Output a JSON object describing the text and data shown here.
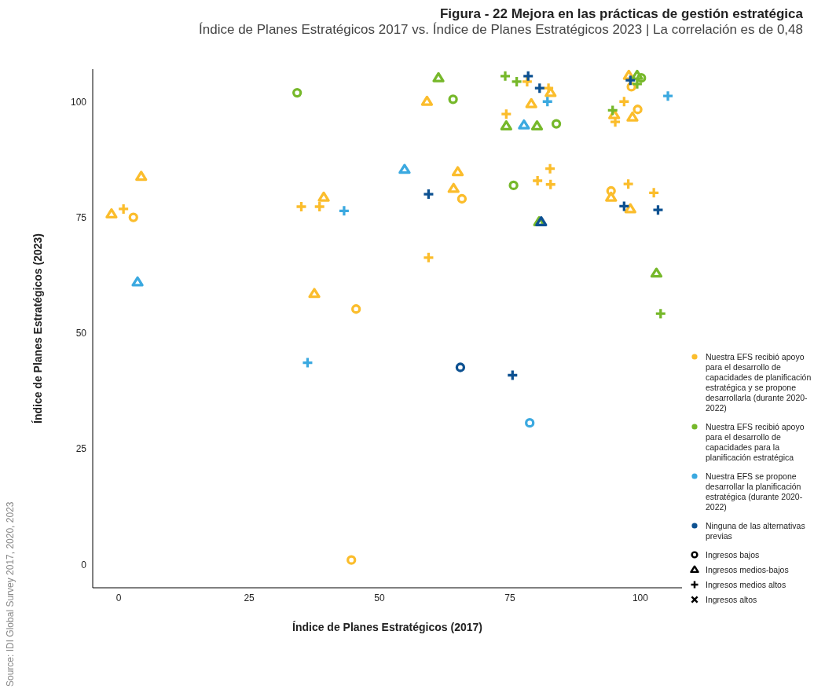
{
  "chart_data": {
    "type": "scatter",
    "title": "Figura - 22 Mejora en las prácticas de gestión estratégica",
    "subtitle": "Índice de Planes Estratégicos 2017 vs. Índice de Planes Estratégicos 2023 | La correlación es de 0,48",
    "xlabel": "Índice de Planes Estratégicos (2017)",
    "ylabel": "Índice de Planes Estratégicos (2023)",
    "annotations": [
      "Source: IDI Global Survey 2017, 2020, 2023"
    ],
    "xlim": [
      -5,
      108
    ],
    "ylim": [
      -5,
      107
    ],
    "xticks": [
      0,
      25,
      50,
      75,
      100
    ],
    "yticks": [
      0,
      25,
      50,
      75,
      100
    ],
    "grid": false,
    "legend": "right",
    "series": [
      {
        "color": "#fbbd2c",
        "marker": "circle",
        "x": [
          2.8,
          45.5,
          44.6,
          65.8,
          98.3,
          99.5,
          94.4
        ],
        "values": [
          75.0,
          55.2,
          1.0,
          79.0,
          103.2,
          98.3,
          80.7
        ]
      },
      {
        "color": "#fbbd2c",
        "marker": "triangle",
        "x": [
          -1.4,
          4.3,
          39.3,
          37.5,
          59.1,
          65.0,
          64.2,
          79.1,
          82.8,
          97.8,
          95.0,
          98.5,
          94.4,
          98.1
        ],
        "values": [
          75.7,
          83.8,
          79.3,
          58.5,
          100.0,
          84.8,
          81.2,
          99.5,
          101.9,
          105.6,
          97.1,
          96.6,
          79.3,
          76.8
        ]
      },
      {
        "color": "#fbbd2c",
        "marker": "plus",
        "x": [
          0.9,
          35.0,
          38.5,
          59.4,
          74.3,
          78.3,
          82.4,
          96.9,
          95.2,
          82.7,
          80.3,
          82.8,
          97.7,
          102.6
        ],
        "values": [
          76.8,
          77.3,
          77.3,
          66.3,
          97.3,
          104.3,
          102.9,
          100.0,
          95.6,
          85.5,
          82.9,
          82.1,
          82.2,
          80.3
        ]
      },
      {
        "color": "#76b82a",
        "marker": "circle",
        "x": [
          34.2,
          64.1,
          83.9,
          75.7,
          100.2
        ],
        "values": [
          101.9,
          100.5,
          95.2,
          81.9,
          105.1
        ]
      },
      {
        "color": "#76b82a",
        "marker": "triangle",
        "x": [
          61.3,
          74.3,
          80.2,
          80.6,
          103.1,
          99.4
        ],
        "values": [
          105.1,
          94.7,
          94.7,
          74.0,
          62.9,
          105.6
        ]
      },
      {
        "color": "#76b82a",
        "marker": "plus",
        "x": [
          74.1,
          76.3,
          94.7,
          103.9,
          99.4
        ],
        "values": [
          105.5,
          104.3,
          98.1,
          54.2,
          103.8
        ]
      },
      {
        "color": "#3ba9e0",
        "marker": "circle",
        "x": [
          78.8
        ],
        "values": [
          30.6
        ]
      },
      {
        "color": "#3ba9e0",
        "marker": "triangle",
        "x": [
          3.6,
          54.8,
          77.7
        ],
        "values": [
          61.0,
          85.3,
          94.9
        ]
      },
      {
        "color": "#3ba9e0",
        "marker": "plus",
        "x": [
          43.2,
          36.2,
          82.2,
          105.3
        ],
        "values": [
          76.4,
          43.6,
          100.0,
          101.2
        ]
      },
      {
        "color": "#0d5191",
        "marker": "circle",
        "x": [
          65.5
        ],
        "values": [
          42.6
        ]
      },
      {
        "color": "#0d5191",
        "marker": "triangle",
        "x": [
          81.0
        ],
        "values": [
          74.0
        ]
      },
      {
        "color": "#0d5191",
        "marker": "plus",
        "x": [
          78.5,
          80.7,
          59.4,
          75.5,
          96.9,
          103.4,
          98.1
        ],
        "values": [
          105.5,
          102.9,
          80.0,
          40.9,
          77.4,
          76.6,
          104.6
        ]
      },
      {
        "name": "Nuestra EFS recibió apoyo para el desarrollo de capacidades de planificación estratégica y se propone desarrollarla (durante 2020-2022)",
        "color": "#fbbd2c",
        "marker": "dot"
      },
      {
        "name": "Nuestra EFS recibió apoyo para el desarrollo de capacidades para la planificación estratégica",
        "color": "#76b82a",
        "marker": "dot"
      },
      {
        "name": "Nuestra EFS se propone desarrollar la planificación estratégica (durante 2020-2022)",
        "color": "#3ba9e0",
        "marker": "dot"
      },
      {
        "name": "Ninguna de las alternativas previas",
        "color": "#0d5191",
        "marker": "dot"
      },
      {
        "name": "Ingresos bajos",
        "color": "#000000",
        "marker": "circle"
      },
      {
        "name": "Ingresos medios-bajos",
        "color": "#000000",
        "marker": "triangle"
      },
      {
        "name": "Ingresos medios altos",
        "color": "#000000",
        "marker": "plus"
      },
      {
        "name": "Ingresos altos",
        "color": "#000000",
        "marker": "cross"
      }
    ]
  }
}
